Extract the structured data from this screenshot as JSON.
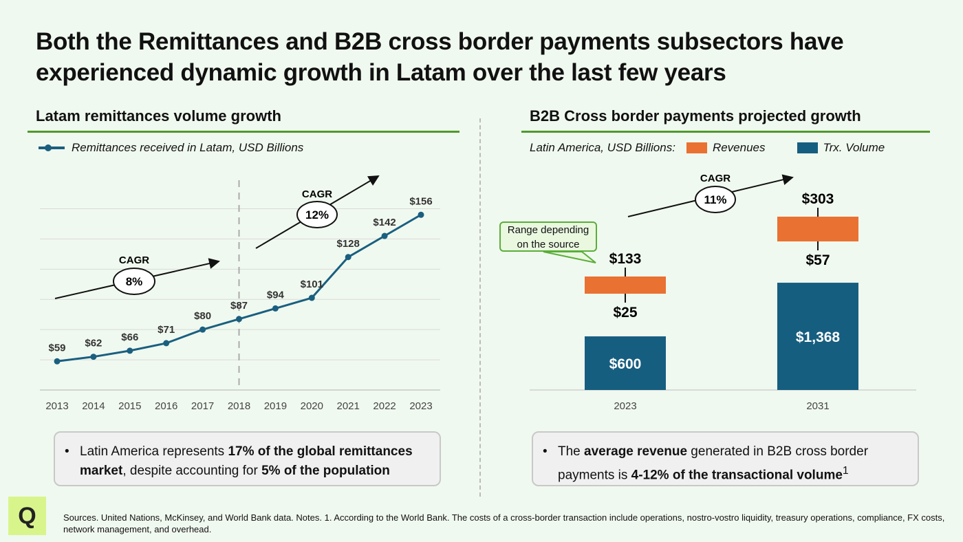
{
  "title": "Both the Remittances and B2B cross border payments subsectors have experienced dynamic growth in Latam over the last few years",
  "colors": {
    "accent_green": "#4e9a2a",
    "line_blue": "#1a5f80",
    "revenue_orange": "#e97132",
    "volume_blue": "#165e80"
  },
  "left": {
    "heading": "Latam remittances volume growth",
    "legend": "Remittances received in Latam, USD Billions",
    "cagr1": {
      "label": "CAGR",
      "value": "8%"
    },
    "cagr2": {
      "label": "CAGR",
      "value": "12%"
    },
    "note": {
      "t1": "Latin America represents ",
      "b1": "17% of the global remittances market",
      "t2": ", despite accounting for ",
      "b2": "5% of the population"
    }
  },
  "right": {
    "heading": "B2B Cross border payments projected growth",
    "legend_prefix": "Latin America, USD Billions:",
    "legend_revenues": "Revenues",
    "legend_volume": "Trx. Volume",
    "cagr": {
      "label": "CAGR",
      "value": "11%"
    },
    "callout": "Range depending on the source",
    "note": {
      "t1": "The ",
      "b1": "average revenue",
      "t2": " generated in B2B cross border payments is ",
      "b2": "4-12% of the transactional volume",
      "sup": "1"
    }
  },
  "footer": "Sources. United Nations, McKinsey, and World Bank data. Notes. 1.  According to the World Bank. The costs of a cross-border transaction include operations, nostro-vostro liquidity, treasury operations, compliance, FX costs, network management, and overhead.",
  "logo": "Q",
  "chart_data": [
    {
      "type": "line",
      "x": [
        "2013",
        "2014",
        "2015",
        "2016",
        "2017",
        "2018",
        "2019",
        "2020",
        "2021",
        "2022",
        "2023"
      ],
      "series": [
        {
          "name": "Remittances received in Latam, USD Billions",
          "values": [
            59,
            62,
            66,
            71,
            80,
            87,
            94,
            101,
            128,
            142,
            156
          ]
        }
      ],
      "data_labels": [
        "$59",
        "$62",
        "$66",
        "$71",
        "$80",
        "$87",
        "$94",
        "$101",
        "$128",
        "$142",
        "$156"
      ],
      "ylim": [
        40,
        160
      ],
      "grid": true,
      "vertical_marker": "2018",
      "annotations": [
        "CAGR 8% (2013-2018)",
        "CAGR 12% (2018-2023)"
      ]
    },
    {
      "type": "bar",
      "categories": [
        "2023",
        "2031"
      ],
      "series": [
        {
          "name": "Trx. Volume",
          "values": [
            600,
            1368
          ],
          "labels": [
            "$600",
            "$1,368"
          ]
        },
        {
          "name": "Revenues",
          "low": [
            25,
            57
          ],
          "high": [
            133,
            303
          ],
          "low_labels": [
            "$25",
            "$57"
          ],
          "high_labels": [
            "$133",
            "$303"
          ]
        }
      ],
      "annotations": [
        "CAGR 11%"
      ]
    }
  ]
}
